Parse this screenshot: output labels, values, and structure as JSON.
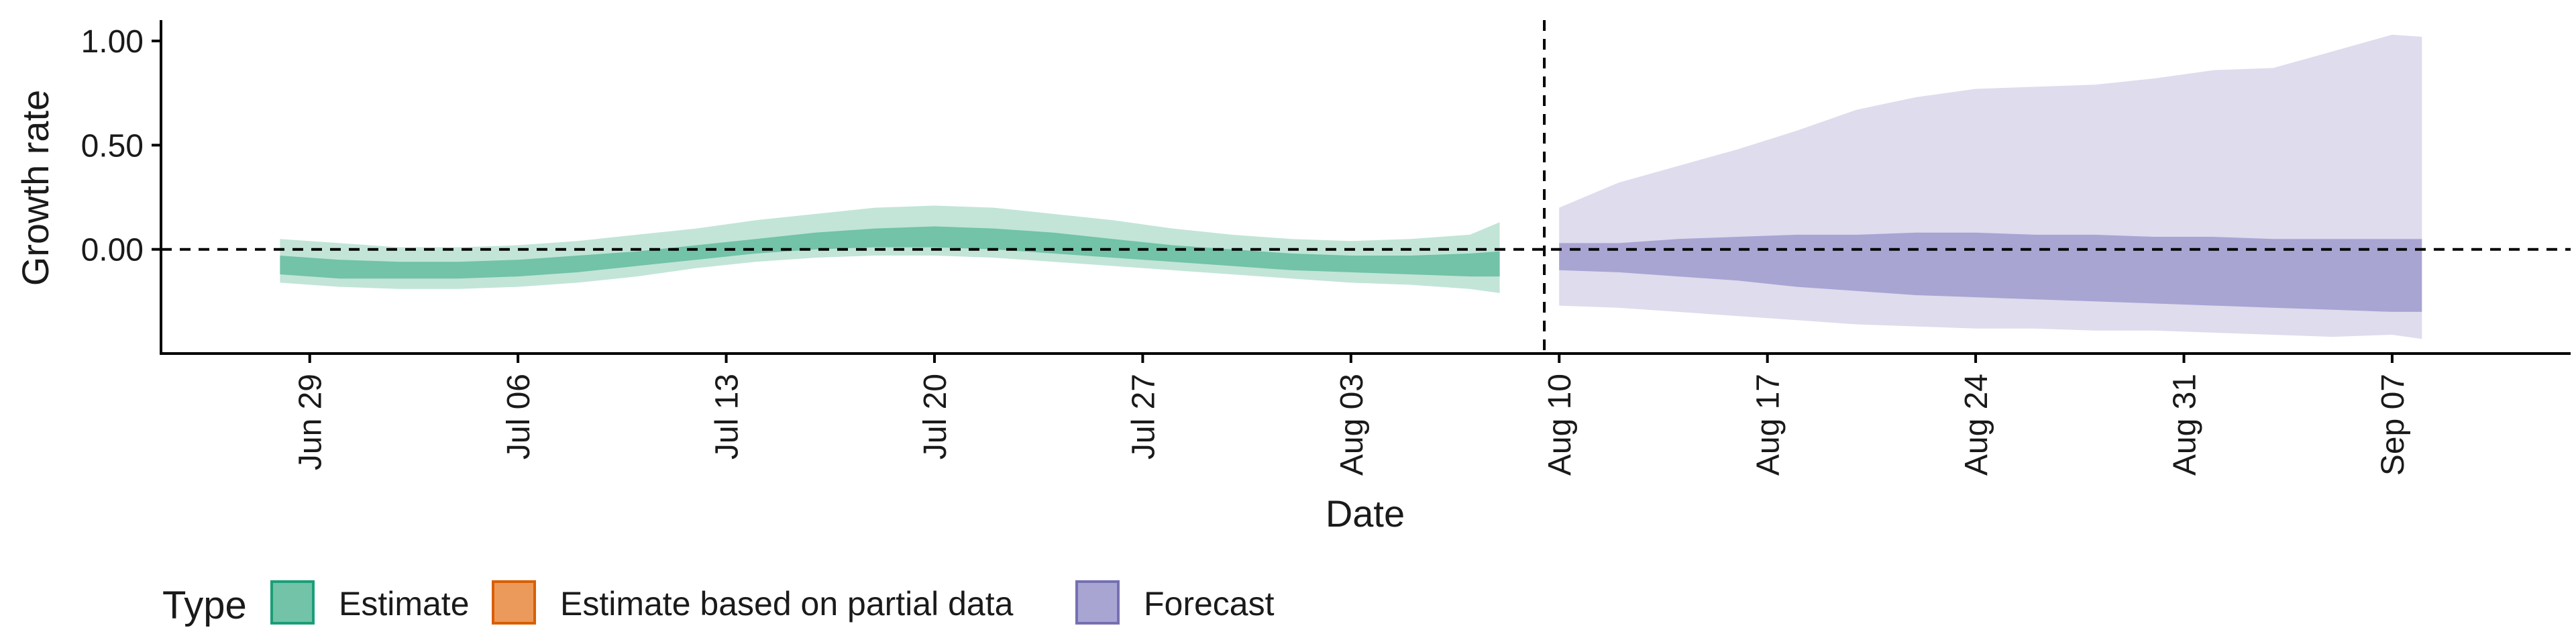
{
  "chart_data": {
    "type": "area",
    "xlabel": "Date",
    "ylabel": "Growth rate",
    "ylim": [
      -0.5,
      1.1
    ],
    "y_ticks": [
      {
        "value": 0.0,
        "label": "0.00"
      },
      {
        "value": 0.5,
        "label": "0.50"
      },
      {
        "value": 1.0,
        "label": "1.00"
      }
    ],
    "x_ticks": [
      {
        "date": "2020-06-29",
        "label": "Jun 29"
      },
      {
        "date": "2020-07-06",
        "label": "Jul 06"
      },
      {
        "date": "2020-07-13",
        "label": "Jul 13"
      },
      {
        "date": "2020-07-20",
        "label": "Jul 20"
      },
      {
        "date": "2020-07-27",
        "label": "Jul 27"
      },
      {
        "date": "2020-08-03",
        "label": "Aug 03"
      },
      {
        "date": "2020-08-10",
        "label": "Aug 10"
      },
      {
        "date": "2020-08-17",
        "label": "Aug 17"
      },
      {
        "date": "2020-08-24",
        "label": "Aug 24"
      },
      {
        "date": "2020-08-31",
        "label": "Aug 31"
      },
      {
        "date": "2020-09-07",
        "label": "Sep 07"
      }
    ],
    "x_range": [
      "2020-06-24",
      "2020-09-13"
    ],
    "forecast_start": "2020-08-09",
    "horizontal_reference": 0.0,
    "grid": false,
    "legend_position": "bottom-left",
    "legend": {
      "title": "Type",
      "items": [
        {
          "label": "Estimate",
          "fill": "#72c3a7",
          "stroke": "#1b9e77"
        },
        {
          "label": "Estimate based on partial data",
          "fill": "#eb9a5c",
          "stroke": "#d95f02"
        },
        {
          "label": "Forecast",
          "fill": "#a8a5d3",
          "stroke": "#7570b3"
        }
      ]
    },
    "series": [
      {
        "name": "Estimate",
        "color_outer": "#c2e5d8",
        "color_inner": "#72c3a7",
        "x": [
          "2020-06-28",
          "2020-06-30",
          "2020-07-02",
          "2020-07-04",
          "2020-07-06",
          "2020-07-08",
          "2020-07-10",
          "2020-07-12",
          "2020-07-14",
          "2020-07-16",
          "2020-07-18",
          "2020-07-20",
          "2020-07-22",
          "2020-07-24",
          "2020-07-26",
          "2020-07-28",
          "2020-07-30",
          "2020-08-01",
          "2020-08-03",
          "2020-08-05",
          "2020-08-07",
          "2020-08-08"
        ],
        "outer_lower": [
          -0.16,
          -0.18,
          -0.19,
          -0.19,
          -0.18,
          -0.16,
          -0.13,
          -0.09,
          -0.06,
          -0.04,
          -0.03,
          -0.03,
          -0.04,
          -0.06,
          -0.08,
          -0.1,
          -0.12,
          -0.14,
          -0.16,
          -0.17,
          -0.19,
          -0.21
        ],
        "outer_upper": [
          0.05,
          0.03,
          0.01,
          0.01,
          0.02,
          0.04,
          0.07,
          0.1,
          0.14,
          0.17,
          0.2,
          0.21,
          0.2,
          0.17,
          0.14,
          0.1,
          0.07,
          0.05,
          0.04,
          0.05,
          0.07,
          0.13
        ],
        "inner_lower": [
          -0.12,
          -0.14,
          -0.14,
          -0.14,
          -0.13,
          -0.11,
          -0.08,
          -0.05,
          -0.02,
          0.0,
          0.01,
          0.01,
          0.0,
          -0.02,
          -0.04,
          -0.06,
          -0.08,
          -0.1,
          -0.11,
          -0.12,
          -0.13,
          -0.13
        ],
        "inner_upper": [
          -0.03,
          -0.05,
          -0.06,
          -0.06,
          -0.05,
          -0.03,
          -0.01,
          0.02,
          0.05,
          0.08,
          0.1,
          0.11,
          0.1,
          0.08,
          0.05,
          0.02,
          0.0,
          -0.02,
          -0.03,
          -0.03,
          -0.02,
          -0.01
        ]
      },
      {
        "name": "Forecast",
        "color_outer": "#dedced",
        "color_inner": "#a8a5d3",
        "x": [
          "2020-08-10",
          "2020-08-12",
          "2020-08-14",
          "2020-08-16",
          "2020-08-18",
          "2020-08-20",
          "2020-08-22",
          "2020-08-24",
          "2020-08-26",
          "2020-08-28",
          "2020-08-30",
          "2020-09-01",
          "2020-09-03",
          "2020-09-05",
          "2020-09-07",
          "2020-09-08"
        ],
        "outer_lower": [
          -0.27,
          -0.28,
          -0.3,
          -0.32,
          -0.34,
          -0.36,
          -0.37,
          -0.38,
          -0.38,
          -0.39,
          -0.39,
          -0.4,
          -0.41,
          -0.42,
          -0.41,
          -0.43
        ],
        "outer_upper": [
          0.2,
          0.32,
          0.4,
          0.48,
          0.57,
          0.67,
          0.73,
          0.77,
          0.78,
          0.79,
          0.82,
          0.86,
          0.87,
          0.95,
          1.03,
          1.02
        ],
        "inner_lower": [
          -0.1,
          -0.11,
          -0.13,
          -0.15,
          -0.18,
          -0.2,
          -0.22,
          -0.23,
          -0.24,
          -0.25,
          -0.26,
          -0.27,
          -0.28,
          -0.29,
          -0.3,
          -0.3
        ],
        "inner_upper": [
          0.03,
          0.03,
          0.05,
          0.06,
          0.07,
          0.07,
          0.08,
          0.08,
          0.07,
          0.07,
          0.06,
          0.06,
          0.05,
          0.05,
          0.05,
          0.05
        ]
      }
    ]
  }
}
